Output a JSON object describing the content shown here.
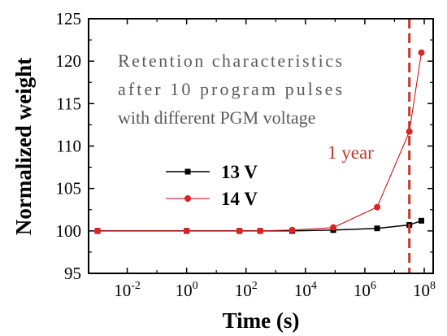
{
  "chart_data": {
    "type": "line",
    "xlabel": "Time (s)",
    "ylabel": "Normalized weight",
    "xscale": "log",
    "xlim": [
      0.0005,
      200000000
    ],
    "ylim": [
      95,
      125
    ],
    "yticks": [
      "95",
      "100",
      "105",
      "110",
      "115",
      "120",
      "125"
    ],
    "xticks": [
      {
        "value": 0.01,
        "base": "10",
        "exp": "-2"
      },
      {
        "value": 1,
        "base": "10",
        "exp": "0"
      },
      {
        "value": 100,
        "base": "10",
        "exp": "2"
      },
      {
        "value": 10000,
        "base": "10",
        "exp": "4"
      },
      {
        "value": 1000000,
        "base": "10",
        "exp": "6"
      },
      {
        "value": 100000000,
        "base": "10",
        "exp": "8"
      }
    ],
    "series": [
      {
        "name": "13 V",
        "color": "#000000",
        "marker": "square",
        "x": [
          0.001,
          1,
          60,
          300,
          3600,
          86400,
          2592000,
          31536000,
          80000000
        ],
        "y": [
          100,
          100,
          100,
          100,
          100,
          100.1,
          100.3,
          100.7,
          101.2
        ]
      },
      {
        "name": "14 V",
        "color": "#cc0000",
        "marker": "circle",
        "x": [
          0.001,
          1,
          60,
          300,
          3600,
          86400,
          2592000,
          31536000,
          80000000
        ],
        "y": [
          100,
          100,
          100,
          100,
          100.1,
          100.4,
          102.8,
          111.7,
          121
        ]
      }
    ],
    "annotation": {
      "lines": [
        "Retention characteristics",
        "after 10 program pulses",
        "with different PGM voltage"
      ],
      "color": "#5a5a5a"
    },
    "vline": {
      "x": 31536000,
      "label": "1 year",
      "color": "#c0392b"
    },
    "legend": {
      "placement": "center-left"
    }
  }
}
